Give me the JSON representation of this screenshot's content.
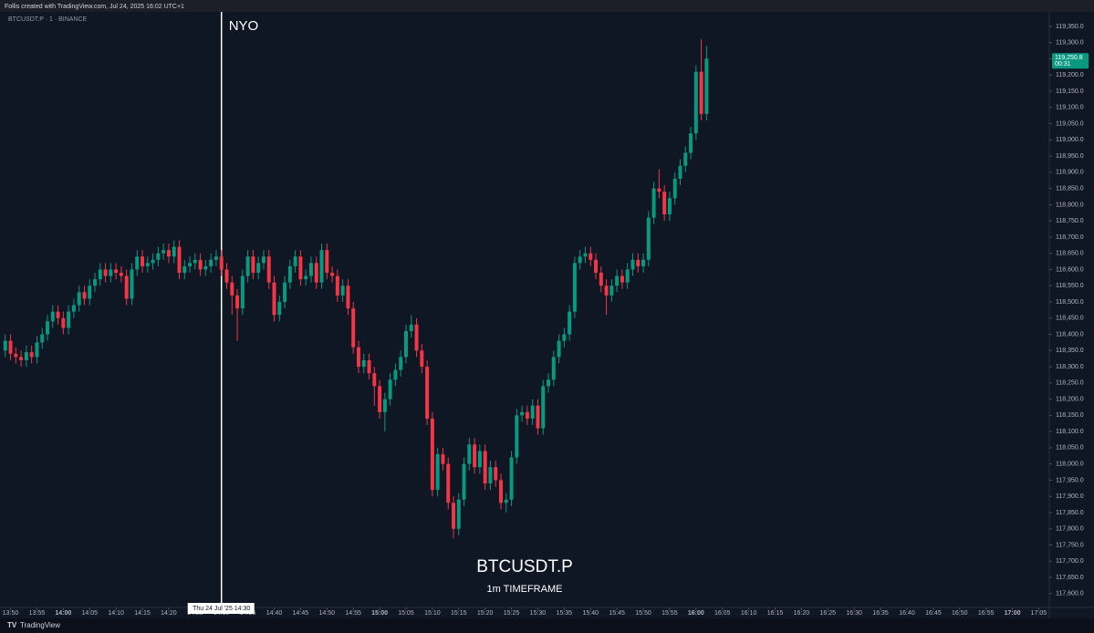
{
  "header": "Follis created with TradingView.com, Jul 24, 2025 16:02 UTC+1",
  "footer": "TradingView",
  "chart_data": {
    "type": "candlestick",
    "symbol_label": "BTCUSDT.P · 1 · BINANCE",
    "title": "BTCUSDT.P",
    "subtitle": "1m TIMEFRAME",
    "annotations": [
      {
        "text": "NYO",
        "x": "14:30"
      }
    ],
    "cursor": {
      "x": "14:30",
      "label": "Thu 24 Jul '25   14:30"
    },
    "last_price": {
      "value": 119250.8,
      "label": "119,250.8",
      "countdown": "00:31"
    },
    "up_color": "#089981",
    "down_color": "#f23645",
    "xlim": [
      "13:48",
      "17:07"
    ],
    "ylim": [
      117560,
      119395
    ],
    "grid": false,
    "x": [
      "13:49",
      "13:50",
      "13:51",
      "13:52",
      "13:53",
      "13:54",
      "13:55",
      "13:56",
      "13:57",
      "13:58",
      "13:59",
      "14:00",
      "14:01",
      "14:02",
      "14:03",
      "14:04",
      "14:05",
      "14:06",
      "14:07",
      "14:08",
      "14:09",
      "14:10",
      "14:11",
      "14:12",
      "14:13",
      "14:14",
      "14:15",
      "14:16",
      "14:17",
      "14:18",
      "14:19",
      "14:20",
      "14:21",
      "14:22",
      "14:23",
      "14:24",
      "14:25",
      "14:26",
      "14:27",
      "14:28",
      "14:29",
      "14:30",
      "14:31",
      "14:32",
      "14:33",
      "14:34",
      "14:35",
      "14:36",
      "14:37",
      "14:38",
      "14:39",
      "14:40",
      "14:41",
      "14:42",
      "14:43",
      "14:44",
      "14:45",
      "14:46",
      "14:47",
      "14:48",
      "14:49",
      "14:50",
      "14:51",
      "14:52",
      "14:53",
      "14:54",
      "14:55",
      "14:56",
      "14:57",
      "14:58",
      "14:59",
      "15:00",
      "15:01",
      "15:02",
      "15:03",
      "15:04",
      "15:05",
      "15:06",
      "15:07",
      "15:08",
      "15:09",
      "15:10",
      "15:11",
      "15:12",
      "15:13",
      "15:14",
      "15:15",
      "15:16",
      "15:17",
      "15:18",
      "15:19",
      "15:20",
      "15:21",
      "15:22",
      "15:23",
      "15:24",
      "15:25",
      "15:26",
      "15:27",
      "15:28",
      "15:29",
      "15:30",
      "15:31",
      "15:32",
      "15:33",
      "15:34",
      "15:35",
      "15:36",
      "15:37",
      "15:38",
      "15:39",
      "15:40",
      "15:41",
      "15:42",
      "15:43",
      "15:44",
      "15:45",
      "15:46",
      "15:47",
      "15:48",
      "15:49",
      "15:50",
      "15:51",
      "15:52",
      "15:53",
      "15:54",
      "15:55",
      "15:56",
      "15:57",
      "15:58",
      "15:59",
      "16:00",
      "16:01",
      "16:02"
    ],
    "open": [
      118350,
      118380,
      118340,
      118330,
      118320,
      118345,
      118330,
      118375,
      118400,
      118440,
      118470,
      118450,
      118420,
      118470,
      118490,
      118530,
      118510,
      118550,
      118570,
      118600,
      118580,
      118600,
      118590,
      118580,
      118510,
      118600,
      118640,
      118610,
      118620,
      118630,
      118650,
      118660,
      118640,
      118670,
      118590,
      118610,
      118620,
      118630,
      118600,
      118610,
      118630,
      118640,
      118600,
      118560,
      118520,
      118480,
      118580,
      118640,
      118590,
      118620,
      118640,
      118560,
      118460,
      118500,
      118560,
      118610,
      118640,
      118570,
      118580,
      118620,
      118560,
      118660,
      118590,
      118580,
      118520,
      118550,
      118480,
      118360,
      118300,
      118320,
      118280,
      118240,
      118160,
      118200,
      118260,
      118290,
      118330,
      118410,
      118430,
      118350,
      118300,
      118140,
      117920,
      118030,
      118000,
      117880,
      117800,
      117890,
      118000,
      118060,
      117990,
      118040,
      117940,
      117990,
      117950,
      117880,
      117890,
      118020,
      118150,
      118160,
      118140,
      118180,
      118110,
      118240,
      118260,
      118330,
      118380,
      118400,
      118470,
      118620,
      118640,
      118650,
      118630,
      118590,
      118550,
      118520,
      118550,
      118580,
      118560,
      118600,
      118630,
      118610,
      118630,
      118760,
      118850,
      118840,
      118770,
      118820,
      118880,
      118920,
      118960,
      119020,
      119210,
      119080
    ],
    "high": [
      118400,
      118400,
      118360,
      118350,
      118365,
      118365,
      118395,
      118420,
      118460,
      118490,
      118490,
      118470,
      118490,
      118510,
      118550,
      118550,
      118570,
      118590,
      118620,
      118620,
      118620,
      118620,
      118610,
      118600,
      118620,
      118660,
      118660,
      118640,
      118650,
      118670,
      118680,
      118680,
      118690,
      118690,
      118630,
      118640,
      118650,
      118650,
      118630,
      118650,
      118660,
      118660,
      118620,
      118580,
      118540,
      118600,
      118660,
      118660,
      118640,
      118660,
      118660,
      118580,
      118520,
      118580,
      118630,
      118660,
      118660,
      118600,
      118640,
      118640,
      118680,
      118680,
      118610,
      118600,
      118570,
      118570,
      118500,
      118380,
      118340,
      118340,
      118300,
      118260,
      118220,
      118280,
      118310,
      118350,
      118430,
      118460,
      118450,
      118370,
      118320,
      118160,
      118050,
      118050,
      118020,
      117900,
      117910,
      118020,
      118080,
      118080,
      118060,
      118060,
      118010,
      118010,
      117970,
      117910,
      118040,
      118170,
      118180,
      118180,
      118200,
      118200,
      118260,
      118280,
      118350,
      118400,
      118420,
      118490,
      118640,
      118660,
      118670,
      118670,
      118650,
      118610,
      118570,
      118570,
      118600,
      118600,
      118620,
      118650,
      118650,
      118650,
      118780,
      118870,
      118910,
      118860,
      118840,
      118900,
      118940,
      118980,
      119040,
      119230,
      119310,
      119290
    ],
    "low": [
      118330,
      118320,
      118310,
      118300,
      118300,
      118310,
      118310,
      118355,
      118380,
      118420,
      118430,
      118400,
      118400,
      118450,
      118470,
      118490,
      118490,
      118530,
      118550,
      118560,
      118560,
      118570,
      118560,
      118490,
      118490,
      118580,
      118590,
      118590,
      118600,
      118610,
      118630,
      118620,
      118620,
      118570,
      118570,
      118590,
      118600,
      118580,
      118580,
      118590,
      118610,
      118580,
      118540,
      118460,
      118380,
      118460,
      118560,
      118570,
      118570,
      118600,
      118540,
      118440,
      118440,
      118480,
      118540,
      118590,
      118550,
      118550,
      118560,
      118540,
      118540,
      118570,
      118560,
      118500,
      118500,
      118460,
      118340,
      118280,
      118280,
      118260,
      118180,
      118140,
      118100,
      118180,
      118240,
      118270,
      118310,
      118390,
      118330,
      118280,
      118120,
      117900,
      117900,
      117980,
      117860,
      117770,
      117780,
      117870,
      117980,
      117970,
      117970,
      117920,
      117920,
      117930,
      117860,
      117850,
      117870,
      118000,
      118130,
      118120,
      118120,
      118090,
      118090,
      118220,
      118240,
      118310,
      118360,
      118380,
      118450,
      118600,
      118620,
      118610,
      118570,
      118530,
      118460,
      118500,
      118530,
      118540,
      118540,
      118580,
      118590,
      118590,
      118610,
      118740,
      118820,
      118750,
      118750,
      118800,
      118860,
      118900,
      118940,
      119000,
      119060,
      119060
    ],
    "close": [
      118380,
      118340,
      118330,
      118320,
      118345,
      118330,
      118375,
      118400,
      118440,
      118470,
      118450,
      118420,
      118470,
      118490,
      118530,
      118510,
      118550,
      118570,
      118600,
      118580,
      118600,
      118590,
      118580,
      118510,
      118600,
      118640,
      118610,
      118620,
      118630,
      118650,
      118660,
      118640,
      118670,
      118590,
      118610,
      118620,
      118630,
      118600,
      118610,
      118630,
      118640,
      118600,
      118560,
      118520,
      118480,
      118580,
      118640,
      118590,
      118620,
      118640,
      118560,
      118460,
      118500,
      118560,
      118610,
      118640,
      118570,
      118580,
      118620,
      118560,
      118660,
      118590,
      118580,
      118520,
      118550,
      118480,
      118360,
      118300,
      118320,
      118280,
      118240,
      118160,
      118200,
      118260,
      118290,
      118330,
      118410,
      118430,
      118350,
      118300,
      118140,
      117920,
      118030,
      118000,
      117880,
      117800,
      117890,
      118000,
      118060,
      117990,
      118040,
      117940,
      117990,
      117950,
      117880,
      117890,
      118020,
      118150,
      118160,
      118140,
      118180,
      118110,
      118240,
      118260,
      118330,
      118380,
      118400,
      118470,
      118620,
      118640,
      118650,
      118630,
      118590,
      118550,
      118520,
      118550,
      118580,
      118560,
      118600,
      118630,
      118610,
      118630,
      118760,
      118850,
      118840,
      118770,
      118820,
      118880,
      118920,
      118960,
      119020,
      119210,
      119080,
      119250.8
    ],
    "xticks": [
      "13:50",
      "13:55",
      "14:00",
      "14:05",
      "14:10",
      "14:15",
      "14:20",
      "14:25",
      "14:30",
      "14:35",
      "14:40",
      "14:45",
      "14:50",
      "14:55",
      "15:00",
      "15:05",
      "15:10",
      "15:15",
      "15:20",
      "15:25",
      "15:30",
      "15:35",
      "15:40",
      "15:45",
      "15:50",
      "15:55",
      "16:00",
      "16:05",
      "16:10",
      "16:15",
      "16:20",
      "16:25",
      "16:30",
      "16:35",
      "16:40",
      "16:45",
      "16:50",
      "16:55",
      "17:00",
      "17:05"
    ],
    "yticks": [
      {
        "value": 117600,
        "label": "117,600.0"
      },
      {
        "value": 117650,
        "label": "117,650.0"
      },
      {
        "value": 117700,
        "label": "117,700.0"
      },
      {
        "value": 117750,
        "label": "117,750.0"
      },
      {
        "value": 117800,
        "label": "117,800.0"
      },
      {
        "value": 117850,
        "label": "117,850.0"
      },
      {
        "value": 117900,
        "label": "117,900.0"
      },
      {
        "value": 117950,
        "label": "117,950.0"
      },
      {
        "value": 118000,
        "label": "118,000.0"
      },
      {
        "value": 118050,
        "label": "118,050.0"
      },
      {
        "value": 118100,
        "label": "118,100.0"
      },
      {
        "value": 118150,
        "label": "118,150.0"
      },
      {
        "value": 118200,
        "label": "118,200.0"
      },
      {
        "value": 118250,
        "label": "118,250.0"
      },
      {
        "value": 118300,
        "label": "118,300.0"
      },
      {
        "value": 118350,
        "label": "118,350.0"
      },
      {
        "value": 118400,
        "label": "118,400.0"
      },
      {
        "value": 118450,
        "label": "118,450.0"
      },
      {
        "value": 118500,
        "label": "118,500.0"
      },
      {
        "value": 118550,
        "label": "118,550.0"
      },
      {
        "value": 118600,
        "label": "118,600.0"
      },
      {
        "value": 118650,
        "label": "118,650.0"
      },
      {
        "value": 118700,
        "label": "118,700.0"
      },
      {
        "value": 118750,
        "label": "118,750.0"
      },
      {
        "value": 118800,
        "label": "118,800.0"
      },
      {
        "value": 118850,
        "label": "118,850.0"
      },
      {
        "value": 118900,
        "label": "118,900.0"
      },
      {
        "value": 118950,
        "label": "118,950.0"
      },
      {
        "value": 119000,
        "label": "119,000.0"
      },
      {
        "value": 119050,
        "label": "119,050.0"
      },
      {
        "value": 119100,
        "label": "119,100.0"
      },
      {
        "value": 119150,
        "label": "119,150.0"
      },
      {
        "value": 119200,
        "label": "119,200.0"
      },
      {
        "value": 119250,
        "label": "119,250.0"
      },
      {
        "value": 119300,
        "label": "119,300.0"
      },
      {
        "value": 119350,
        "label": "119,350.0"
      }
    ]
  }
}
